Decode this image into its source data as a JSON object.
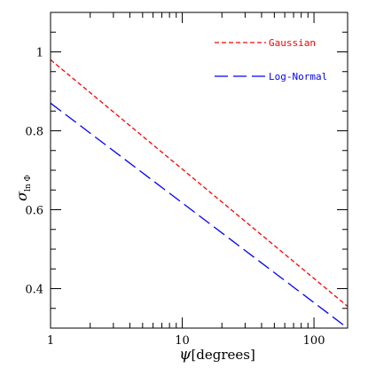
{
  "chart_data": {
    "type": "line",
    "xscale": "log",
    "xlim": [
      1,
      180
    ],
    "ylim": [
      0.3,
      1.1
    ],
    "xlabel_symbol": "ψ",
    "xlabel_text": "[degrees]",
    "ylabel_symbol": "σ",
    "ylabel_subscript": "ln Φ",
    "x_tick_labels": [
      {
        "value": 1,
        "label": "1"
      },
      {
        "value": 10,
        "label": "10"
      },
      {
        "value": 100,
        "label": "100"
      }
    ],
    "y_tick_labels": [
      {
        "value": 0.4,
        "label": "0.4"
      },
      {
        "value": 0.6,
        "label": "0.6"
      },
      {
        "value": 0.8,
        "label": "0.8"
      },
      {
        "value": 1.0,
        "label": "1"
      }
    ],
    "grid": false,
    "legend_position": "top-right",
    "series": [
      {
        "name": "Gaussian",
        "color": "#ff0000",
        "dash": "short",
        "x": [
          1,
          180
        ],
        "y": [
          0.98,
          0.355
        ]
      },
      {
        "name": "Log-Normal",
        "color": "#0000ff",
        "dash": "long",
        "x": [
          1,
          180
        ],
        "y": [
          0.87,
          0.3
        ]
      }
    ]
  }
}
